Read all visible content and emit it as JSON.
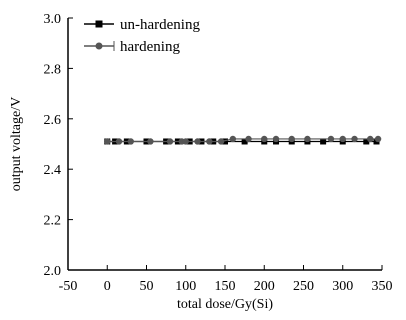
{
  "chart_data": {
    "type": "line",
    "xlabel": "total dose/Gy(Si)",
    "ylabel": "output voltage/V",
    "xlim": [
      -50,
      350
    ],
    "ylim": [
      2.0,
      3.0
    ],
    "x_ticks": [
      -50,
      0,
      50,
      100,
      150,
      200,
      250,
      300,
      350
    ],
    "x_tick_labels": [
      "-50",
      "0",
      "50",
      "100",
      "150",
      "200",
      "250",
      "300",
      "350"
    ],
    "y_ticks": [
      2.0,
      2.2,
      2.4,
      2.6,
      2.8,
      3.0
    ],
    "y_tick_labels": [
      "2.0",
      "2.2",
      "2.4",
      "2.6",
      "2.8",
      "3.0"
    ],
    "grid": false,
    "legend_position": "top-left",
    "series": [
      {
        "name": "un-hardening",
        "marker": "square",
        "color": "#000000",
        "x": [
          0,
          10,
          25,
          50,
          75,
          90,
          105,
          120,
          135,
          150,
          175,
          200,
          215,
          235,
          255,
          275,
          300,
          330,
          343
        ],
        "y": [
          2.51,
          2.51,
          2.51,
          2.51,
          2.51,
          2.51,
          2.51,
          2.51,
          2.51,
          2.51,
          2.51,
          2.51,
          2.51,
          2.51,
          2.51,
          2.51,
          2.51,
          2.51,
          2.51
        ]
      },
      {
        "name": "hardening",
        "marker": "circle",
        "color": "#555555",
        "x": [
          0,
          15,
          30,
          55,
          80,
          95,
          100,
          115,
          130,
          145,
          160,
          180,
          200,
          215,
          235,
          255,
          285,
          300,
          315,
          335,
          345
        ],
        "y": [
          2.51,
          2.51,
          2.51,
          2.51,
          2.51,
          2.51,
          2.51,
          2.51,
          2.51,
          2.51,
          2.52,
          2.52,
          2.52,
          2.52,
          2.52,
          2.52,
          2.52,
          2.52,
          2.52,
          2.52,
          2.52
        ]
      }
    ]
  }
}
